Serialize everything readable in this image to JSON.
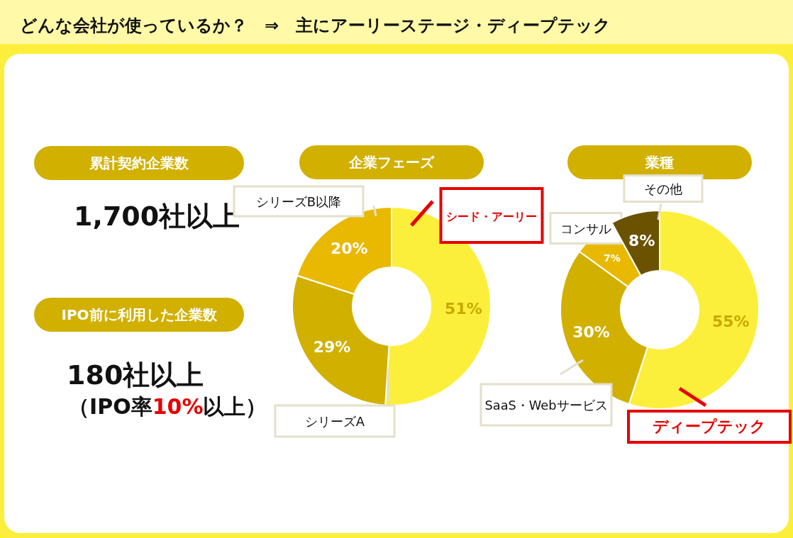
{
  "chart_data": [
    {
      "type": "other",
      "title": "どんな会社が使っているか？　⇒　主にアーリーステージ・ディープテック",
      "annotations": [
        "累計契約企業数",
        "1,700社以上",
        "IPO前に利用した企業数",
        "180社以上",
        "（IPO率",
        "10%",
        "以上）"
      ]
    },
    {
      "type": "donut",
      "title": "企業フェーズ",
      "categories": [
        "シード・アーリー",
        "シリーズA",
        "シリーズB以降"
      ],
      "values": [
        51,
        29,
        20
      ],
      "colors": [
        "#fcef3c",
        "#d1b000",
        "#e8b900"
      ],
      "value_labels": [
        "51%",
        "29%",
        "20%"
      ]
    },
    {
      "type": "donut",
      "title": "業種",
      "categories": [
        "ディープテック",
        "SaaS・Webサービス",
        "コンサル",
        "その他"
      ],
      "values": [
        55,
        30,
        7,
        8
      ],
      "colors": [
        "#fcef3c",
        "#d1b000",
        "#e8b900",
        "#6b5200"
      ],
      "value_labels": [
        "55%",
        "30%",
        "7%",
        "8%"
      ]
    }
  ]
}
